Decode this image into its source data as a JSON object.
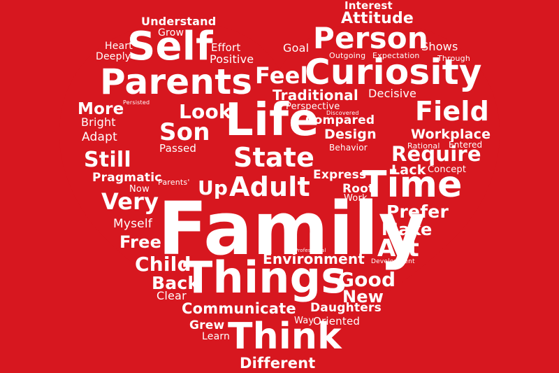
{
  "colors": {
    "background": "#D7171F",
    "heart": "#FFFFFF",
    "words": "#FFFFFF"
  },
  "words": [
    "Family",
    "Things",
    "Think",
    "Life",
    "Self",
    "Parents",
    "Curiosity",
    "Person",
    "Time",
    "Adult",
    "State",
    "Field",
    "Feel",
    "Son",
    "Look",
    "Still",
    "Very",
    "Up",
    "Art",
    "Make",
    "Prefer",
    "Good",
    "New",
    "Child",
    "Back",
    "Free",
    "More",
    "Require",
    "Different",
    "Communicate",
    "Environment",
    "Attitude",
    "Interest",
    "Workplace",
    "Design",
    "Compared",
    "Traditional",
    "Express",
    "Daughters",
    "Understand",
    "Grow",
    "Heart",
    "Deeply",
    "Effort",
    "Positive",
    "Goal",
    "Shows",
    "Through",
    "Outgoing",
    "Expectation",
    "Decisive",
    "Perspective",
    "Discovered",
    "Persisted",
    "Bright",
    "Adapt",
    "Passed",
    "Behavior",
    "Rational",
    "Entered",
    "Concept",
    "Lack",
    "Pragmatic",
    "Now",
    "Parents'",
    "Root",
    "Work",
    "Myself",
    "Professional",
    "Development",
    "Clear",
    "Grew",
    "Way",
    "Oriented",
    "Learn"
  ]
}
